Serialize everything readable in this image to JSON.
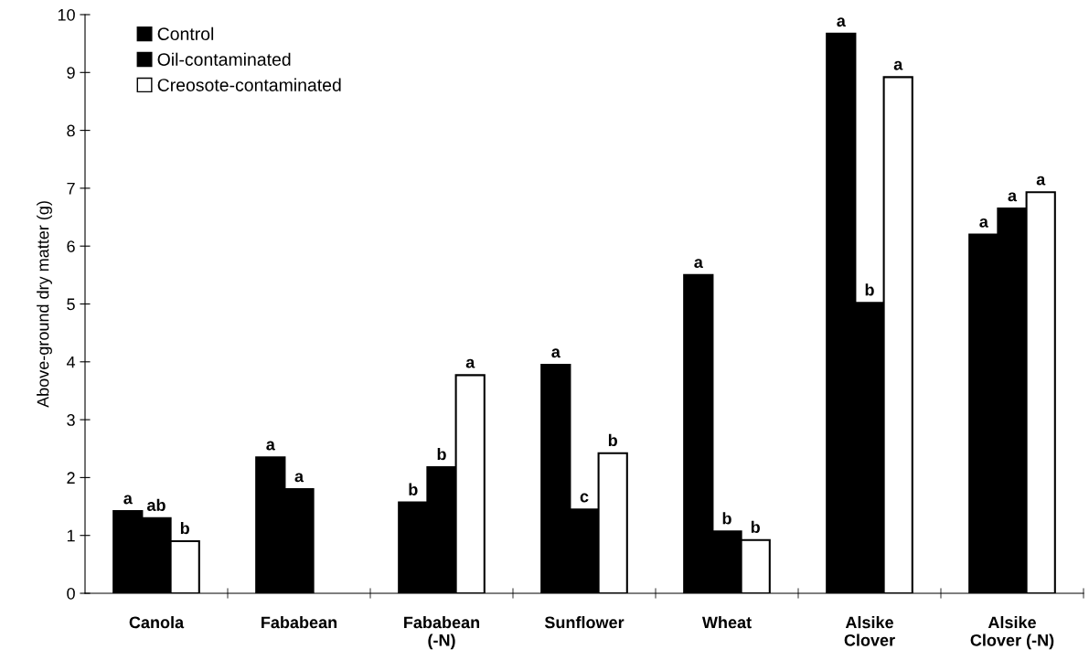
{
  "chart_data": {
    "type": "bar",
    "ylabel": "Above-ground dry matter (g)",
    "categories": [
      "Canola",
      "Fababean",
      "Fababean\n(-N)",
      "Sunflower",
      "Wheat",
      "Alsike\nClover",
      "Alsike\nClover (-N)"
    ],
    "series": [
      {
        "name": "Control",
        "color": "#000000",
        "values": [
          1.42,
          2.35,
          1.57,
          3.95,
          5.5,
          9.67,
          6.2
        ],
        "value_labels": [
          "a",
          "a",
          "b",
          "a",
          "a",
          "a",
          "a"
        ]
      },
      {
        "name": "Oil-contaminated",
        "color": "#000000",
        "values": [
          1.3,
          1.8,
          2.18,
          1.45,
          1.07,
          5.02,
          6.65
        ],
        "value_labels": [
          "ab",
          "a",
          "b",
          "c",
          "b",
          "b",
          "a"
        ]
      },
      {
        "name": "Creosote-contaminated",
        "color": "#ffffff",
        "values": [
          0.9,
          null,
          3.77,
          2.42,
          0.92,
          8.92,
          6.93
        ],
        "value_labels": [
          "b",
          null,
          "a",
          "b",
          "b",
          "a",
          "a"
        ]
      }
    ],
    "ylim": [
      0,
      10
    ],
    "yticks": [
      0,
      1,
      2,
      3,
      4,
      5,
      6,
      7,
      8,
      9,
      10
    ],
    "grid": false,
    "legend": "top left"
  }
}
